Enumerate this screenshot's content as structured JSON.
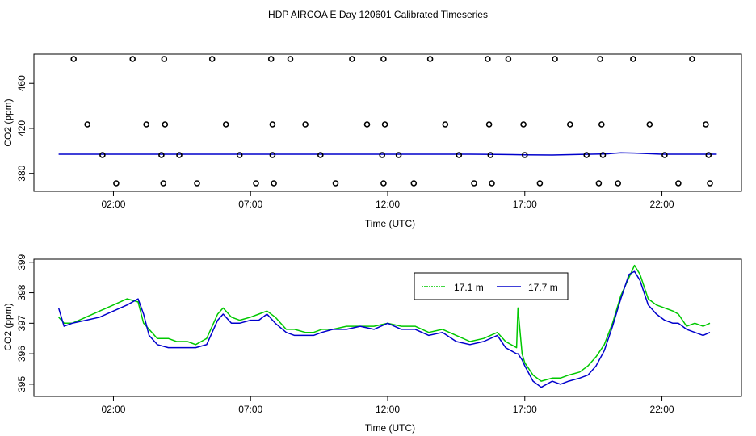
{
  "title": "HDP AIRCOA E  Day 120601  Calibrated Timeseries",
  "colors": {
    "series_17_1": "#00c800",
    "series_17_7": "#0000cc",
    "axis": "#000000"
  },
  "chart_data": [
    {
      "type": "line",
      "xlabel": "Time (UTC)",
      "ylabel": "CO2 (ppm)",
      "xlim": [
        -0.9,
        24.9
      ],
      "ylim": [
        364,
        486
      ],
      "x_ticks": [
        2,
        7,
        12,
        17,
        22
      ],
      "x_tick_labels": [
        "02:00",
        "07:00",
        "12:00",
        "17:00",
        "22:00"
      ],
      "y_ticks": [
        380,
        420,
        460
      ],
      "y_tick_labels": [
        "380",
        "420",
        "460"
      ],
      "grid": false,
      "legend": null,
      "series": [
        {
          "x": [
            0,
            1,
            2,
            3,
            4,
            5,
            6,
            7,
            8,
            9,
            10,
            11,
            12,
            13,
            14,
            15,
            16,
            17,
            18,
            19,
            20,
            20.5,
            21,
            22,
            23,
            24
          ],
          "values": [
            397,
            397,
            397,
            397,
            397,
            397,
            397,
            397,
            397,
            397,
            397,
            397,
            397,
            397,
            397,
            397,
            396.8,
            396.5,
            396.3,
            396.8,
            397.3,
            398.3,
            398,
            397,
            397,
            397
          ]
        }
      ],
      "scatter_points": {
        "x": [
          0.55,
          1.05,
          1.6,
          2.1,
          2.7,
          3.2,
          3.75,
          3.82,
          3.85,
          3.88,
          4.4,
          5.05,
          5.6,
          6.1,
          6.6,
          7.2,
          7.75,
          7.8,
          7.8,
          7.85,
          8.45,
          9.0,
          9.55,
          10.1,
          10.7,
          11.25,
          11.8,
          11.85,
          11.85,
          11.9,
          12.4,
          12.95,
          13.55,
          14.1,
          14.6,
          15.15,
          15.65,
          15.7,
          15.75,
          15.8,
          16.4,
          16.95,
          17.0,
          17.55,
          18.1,
          18.65,
          19.25,
          19.7,
          19.75,
          19.8,
          19.85,
          20.4,
          20.95,
          21.55,
          22.1,
          22.6,
          23.1,
          23.6,
          23.7,
          23.75
        ]
      }
    },
    {
      "type": "line",
      "xlabel": "Time (UTC)",
      "ylabel": "CO2 (ppm)",
      "xlim": [
        -0.9,
        24.9
      ],
      "ylim": [
        394.6,
        399.1
      ],
      "x_ticks": [
        2,
        7,
        12,
        17,
        22
      ],
      "x_tick_labels": [
        "02:00",
        "07:00",
        "12:00",
        "17:00",
        "22:00"
      ],
      "y_ticks": [
        395,
        396,
        397,
        398,
        399
      ],
      "y_tick_labels": [
        "395",
        "396",
        "397",
        "398",
        "399"
      ],
      "grid": false,
      "legend": "top-right",
      "series": [
        {
          "name": "17.1 m",
          "x": [
            0,
            0.2,
            0.5,
            1.0,
            1.5,
            2.0,
            2.5,
            2.9,
            3.1,
            3.3,
            3.6,
            4.0,
            4.3,
            4.7,
            5.0,
            5.4,
            5.8,
            6.0,
            6.3,
            6.6,
            7.0,
            7.3,
            7.6,
            7.9,
            8.3,
            8.6,
            9.0,
            9.3,
            9.6,
            10.0,
            10.5,
            11.0,
            11.5,
            12.0,
            12.5,
            13.0,
            13.5,
            14.0,
            14.5,
            15.0,
            15.5,
            16.0,
            16.3,
            16.7,
            16.75,
            16.9,
            17.0,
            17.3,
            17.6,
            18.0,
            18.3,
            18.6,
            19.0,
            19.3,
            19.6,
            19.9,
            20.2,
            20.5,
            20.8,
            21.0,
            21.2,
            21.5,
            21.8,
            22.1,
            22.4,
            22.6,
            22.9,
            23.2,
            23.5,
            23.75
          ],
          "values": [
            397.2,
            397.0,
            397.0,
            397.2,
            397.4,
            397.6,
            397.8,
            397.7,
            397.0,
            396.8,
            396.5,
            396.5,
            396.4,
            396.4,
            396.3,
            396.5,
            397.3,
            397.5,
            397.2,
            397.1,
            397.2,
            397.3,
            397.4,
            397.2,
            396.8,
            396.8,
            396.7,
            396.7,
            396.8,
            396.8,
            396.9,
            396.9,
            396.9,
            397.0,
            396.9,
            396.9,
            396.7,
            396.8,
            396.6,
            396.4,
            396.5,
            396.7,
            396.4,
            396.2,
            397.5,
            396.0,
            395.7,
            395.3,
            395.1,
            395.2,
            395.2,
            395.3,
            395.4,
            395.6,
            395.9,
            396.3,
            397.0,
            397.9,
            398.5,
            398.9,
            398.6,
            397.8,
            397.6,
            397.5,
            397.4,
            397.3,
            396.9,
            397.0,
            396.9,
            397.0
          ]
        },
        {
          "name": "17.7 m",
          "x": [
            0,
            0.2,
            0.5,
            1.0,
            1.5,
            2.0,
            2.5,
            2.9,
            3.1,
            3.3,
            3.6,
            4.0,
            4.3,
            4.7,
            5.0,
            5.4,
            5.8,
            6.0,
            6.3,
            6.6,
            7.0,
            7.3,
            7.6,
            7.9,
            8.3,
            8.6,
            9.0,
            9.3,
            9.6,
            10.0,
            10.5,
            11.0,
            11.5,
            12.0,
            12.5,
            13.0,
            13.5,
            14.0,
            14.5,
            15.0,
            15.5,
            16.0,
            16.3,
            16.7,
            16.75,
            16.9,
            17.0,
            17.3,
            17.6,
            18.0,
            18.3,
            18.6,
            19.0,
            19.3,
            19.6,
            19.9,
            20.2,
            20.5,
            20.8,
            21.0,
            21.2,
            21.5,
            21.8,
            22.1,
            22.4,
            22.6,
            22.9,
            23.2,
            23.5,
            23.75
          ],
          "values": [
            397.5,
            396.9,
            397.0,
            397.1,
            397.2,
            397.4,
            397.6,
            397.8,
            397.3,
            396.6,
            396.3,
            396.2,
            396.2,
            396.2,
            396.2,
            396.3,
            397.1,
            397.3,
            397.0,
            397.0,
            397.1,
            397.1,
            397.3,
            397.0,
            396.7,
            396.6,
            396.6,
            396.6,
            396.7,
            396.8,
            396.8,
            396.9,
            396.8,
            397.0,
            396.8,
            396.8,
            396.6,
            396.7,
            396.4,
            396.3,
            396.4,
            396.6,
            396.2,
            396.0,
            396.0,
            395.8,
            395.6,
            395.1,
            394.9,
            395.1,
            395.0,
            395.1,
            395.2,
            395.3,
            395.6,
            396.1,
            396.9,
            397.8,
            398.6,
            398.7,
            398.4,
            397.6,
            397.3,
            397.1,
            397.0,
            397.0,
            396.8,
            396.7,
            396.6,
            396.7
          ]
        }
      ]
    }
  ]
}
